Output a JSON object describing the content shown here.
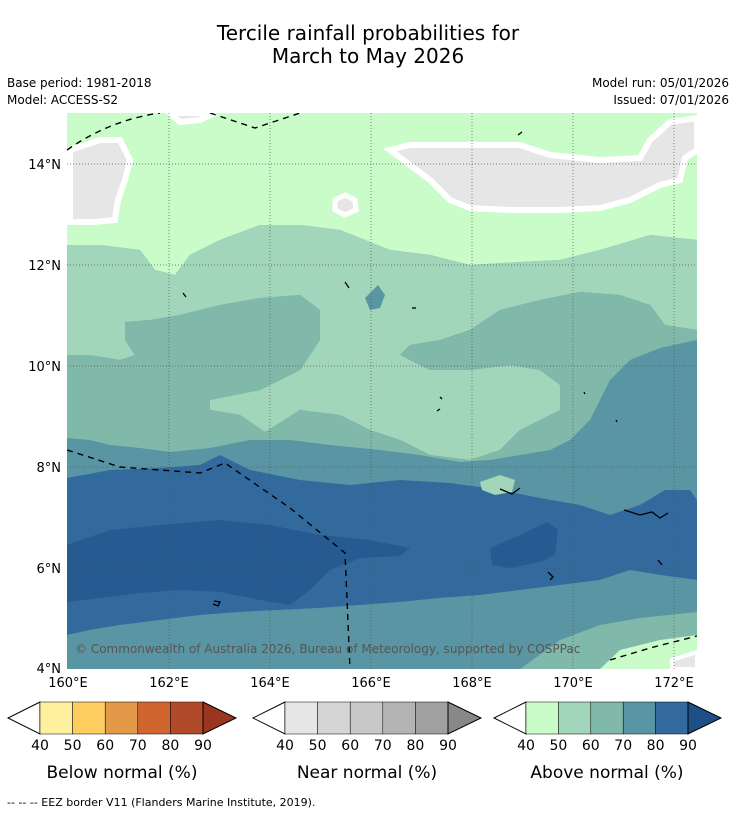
{
  "title": {
    "line1": "Tercile rainfall probabilities for",
    "line2": "March to May 2026"
  },
  "meta": {
    "base_period": "Base period: 1981-2018",
    "model": "Model: ACCESS-S2",
    "model_run": "Model run: 05/01/2026",
    "issued": "Issued: 07/01/2026"
  },
  "map": {
    "lon_ticks": [
      "160°E",
      "162°E",
      "164°E",
      "166°E",
      "168°E",
      "170°E",
      "172°E"
    ],
    "lat_ticks": [
      "14°N",
      "12°N",
      "10°N",
      "8°N",
      "6°N",
      "4°N"
    ],
    "extent": {
      "lon_min": 160,
      "lon_max": 172.5,
      "lat_min": 4,
      "lat_max": 15
    },
    "copyright": "© Commonwealth of Australia 2026, Bureau of Meteorology, supported by COSPPac"
  },
  "colorbars": [
    {
      "label": "Below normal (%)",
      "ticks": [
        "40",
        "50",
        "60",
        "70",
        "80",
        "90"
      ],
      "colors": [
        "#fff0a0",
        "#fdcd60",
        "#e39a48",
        "#d06530",
        "#b04a28",
        "#9a3520"
      ]
    },
    {
      "label": "Near normal (%)",
      "ticks": [
        "40",
        "50",
        "60",
        "70",
        "80",
        "90"
      ],
      "colors": [
        "#e6e6e6",
        "#d5d5d5",
        "#c8c8c8",
        "#b4b4b4",
        "#a0a0a0",
        "#888888"
      ]
    },
    {
      "label": "Above normal (%)",
      "ticks": [
        "40",
        "50",
        "60",
        "70",
        "80",
        "90"
      ],
      "colors": [
        "#c9fcc9",
        "#a2d6bb",
        "#80b8aa",
        "#5a95a4",
        "#326a9e",
        "#1e4f86"
      ]
    }
  ],
  "footer": "--  --  -- EEZ border V11 (Flanders Marine Institute, 2019)."
}
